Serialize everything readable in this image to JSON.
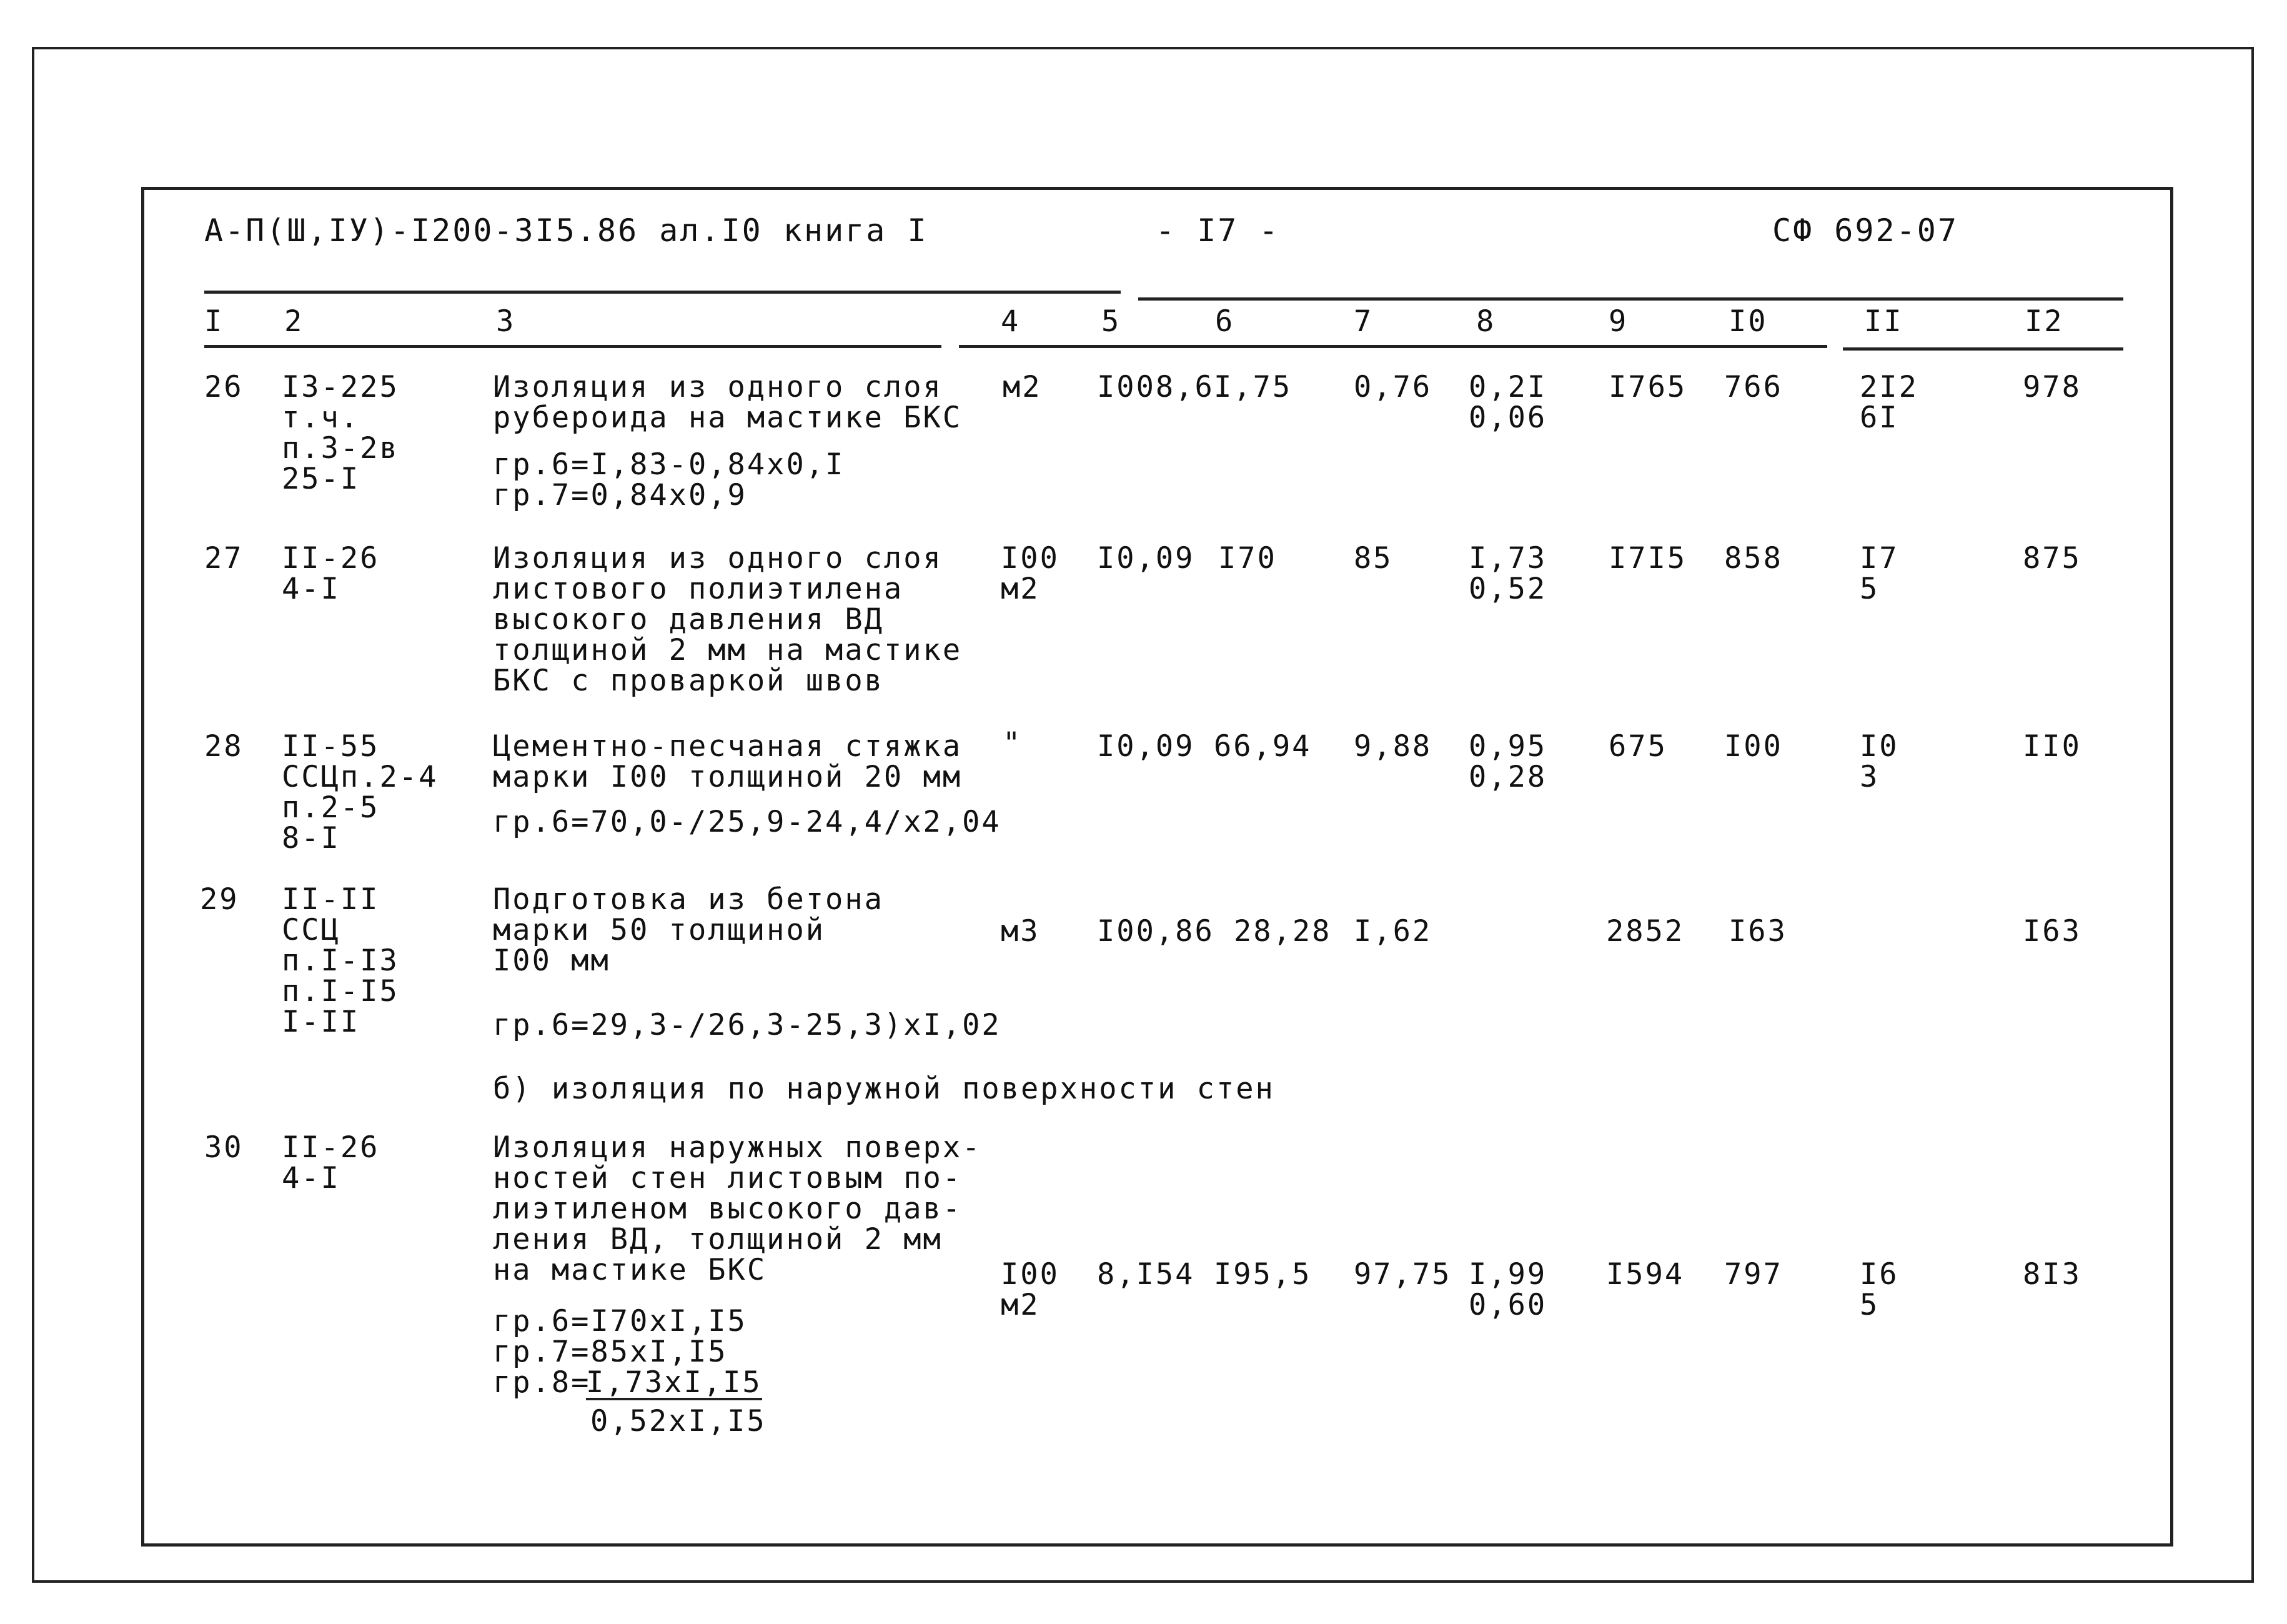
{
  "header": {
    "doc_code": "А-П(Ш,IУ)-I200-3I5.86 ал.I0 книга I",
    "page": "- I7 -",
    "sheet_code": "СФ 692-07"
  },
  "columns": [
    "I",
    "2",
    "3",
    "4",
    "5",
    "6",
    "7",
    "8",
    "9",
    "I0",
    "II",
    "I2"
  ],
  "rows": [
    {
      "num": "26",
      "code": "I3-225\nт.ч.\nп.3-2в\n25-I",
      "desc": "Изоляция из одного слоя\nрубероида на мастике БКС",
      "formula": "гр.6=I,83-0,84х0,I\nгр.7=0,84х0,9",
      "unit": "м2",
      "c5": "I008,6",
      "c6": "I,75",
      "c7": "0,76",
      "c8": "0,2I\n0,06",
      "c9": "I765",
      "c10": "766",
      "c11": "2I2\n6I",
      "c12": "978"
    },
    {
      "num": "27",
      "code": "II-26\n4-I",
      "desc": "Изоляция из одного слоя\nлистового полиэтилена\nвысокого давления ВД\nтолщиной 2 мм на мастике\nБКС с проваркой швов",
      "unit": "I00\nм2",
      "c5": "I0,09",
      "c6": "I70",
      "c7": "85",
      "c8": "I,73\n0,52",
      "c9": "I7I5",
      "c10": "858",
      "c11": "I7\n5",
      "c12": "875"
    },
    {
      "num": "28",
      "code": "II-55\nССЦп.2-4\nп.2-5\n8-I",
      "desc": "Цементно-песчаная стяжка\nмарки I00 толщиной 20 мм",
      "formula": "гр.6=70,0-/25,9-24,4/х2,04",
      "unit": "\"",
      "c5": "I0,09",
      "c6": "66,94",
      "c7": "9,88",
      "c8": "0,95\n0,28",
      "c9": "675",
      "c10": "I00",
      "c11": "I0\n3",
      "c12": "II0"
    },
    {
      "num": "29",
      "code": "II-II\nССЦ\nп.I-I3\nп.I-I5\nI-II",
      "desc": "Подготовка из бетона\nмарки 50 толщиной\nI00 мм",
      "formula": "гр.6=29,3-/26,3-25,3)хI,02",
      "unit": "м3",
      "c5": "I00,86",
      "c6": "28,28",
      "c7": "I,62",
      "c8": "",
      "c9": "2852",
      "c10": "I63",
      "c11": "",
      "c12": "I63"
    },
    {
      "num": "30",
      "code": "II-26\n4-I",
      "desc": "Изоляция наружных поверх-\nностей стен листовым по-\nлиэтиленом высокого дав-\nления ВД, толщиной 2 мм\nна мастике БКС",
      "formula": "гр.6=I70хI,I5\nгр.7=85хI,I5",
      "formula_frac_prefix": "гр.8=",
      "formula_frac_num": "I,73хI,I5",
      "formula_frac_den": "0,52хI,I5",
      "unit": "I00\nм2",
      "c5": "8,I54",
      "c6": "I95,5",
      "c7": "97,75",
      "c8": "I,99\n0,60",
      "c9": "I594",
      "c10": "797",
      "c11": "I6\n5",
      "c12": "8I3"
    }
  ],
  "section_b": "б) изоляция по наружной поверхности стен"
}
